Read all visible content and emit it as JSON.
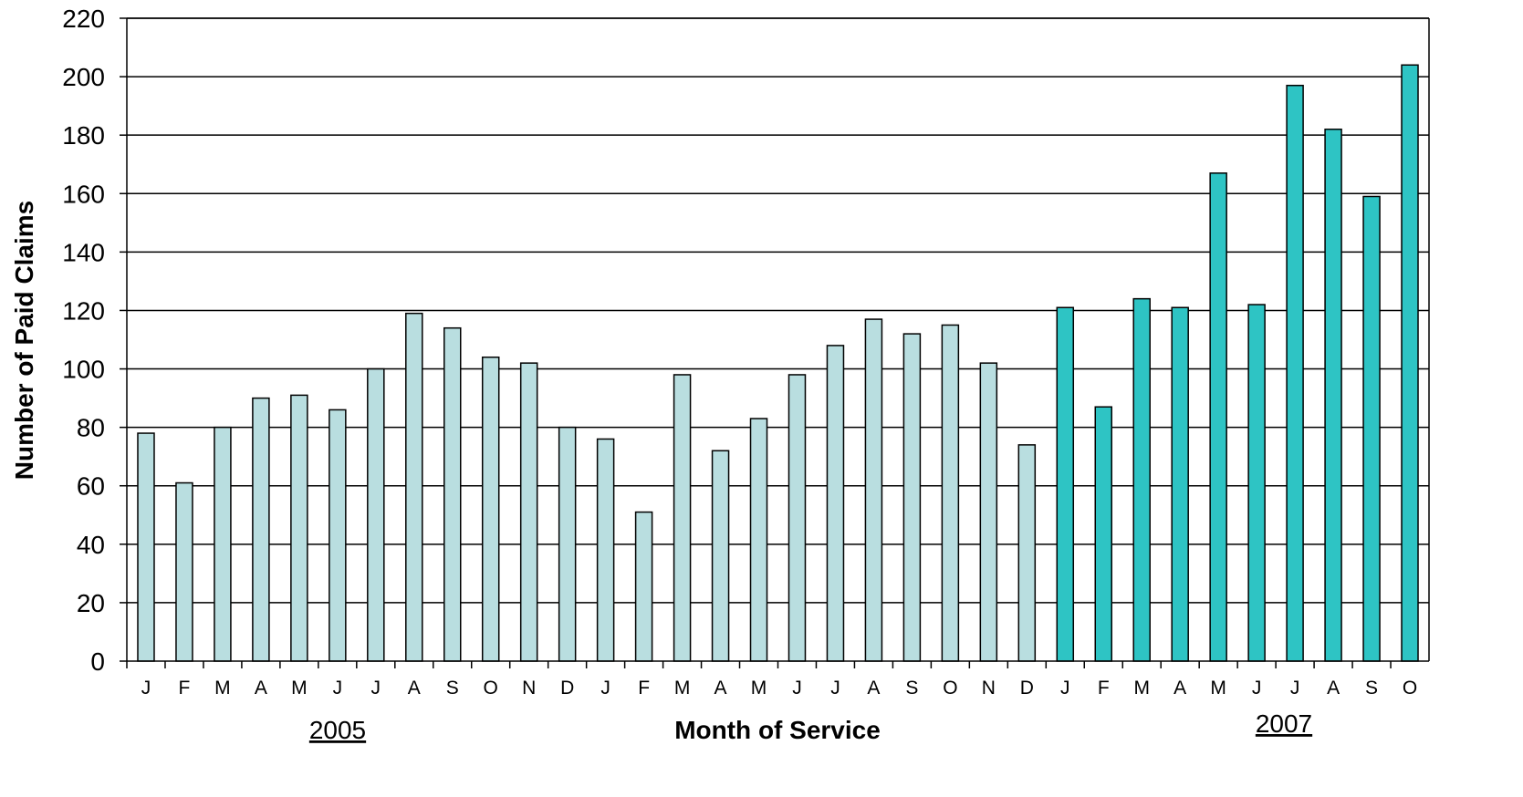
{
  "chart_data": {
    "type": "bar",
    "xlabel": "Month of Service",
    "ylabel": "Number of Paid Claims",
    "ylim": [
      0,
      220
    ],
    "y_ticks": [
      0,
      20,
      40,
      60,
      80,
      100,
      120,
      140,
      160,
      180,
      200,
      220
    ],
    "grid": "horizontal",
    "year_labels": [
      "2005",
      "2007"
    ],
    "categories": [
      "J",
      "F",
      "M",
      "A",
      "M",
      "J",
      "J",
      "A",
      "S",
      "O",
      "N",
      "D",
      "J",
      "F",
      "M",
      "A",
      "M",
      "J",
      "J",
      "A",
      "S",
      "O",
      "N",
      "D",
      "J",
      "F",
      "M",
      "A",
      "M",
      "J",
      "J",
      "A",
      "S",
      "O"
    ],
    "values": [
      78,
      61,
      80,
      90,
      91,
      86,
      100,
      119,
      114,
      104,
      102,
      80,
      76,
      51,
      98,
      72,
      83,
      98,
      108,
      117,
      112,
      115,
      102,
      74,
      121,
      87,
      124,
      121,
      167,
      122,
      197,
      182,
      159,
      204
    ],
    "colors": {
      "light": "#B9DEE0",
      "dark": "#2EC4C4",
      "outline": "#000000"
    },
    "dark_from_index": 24
  }
}
